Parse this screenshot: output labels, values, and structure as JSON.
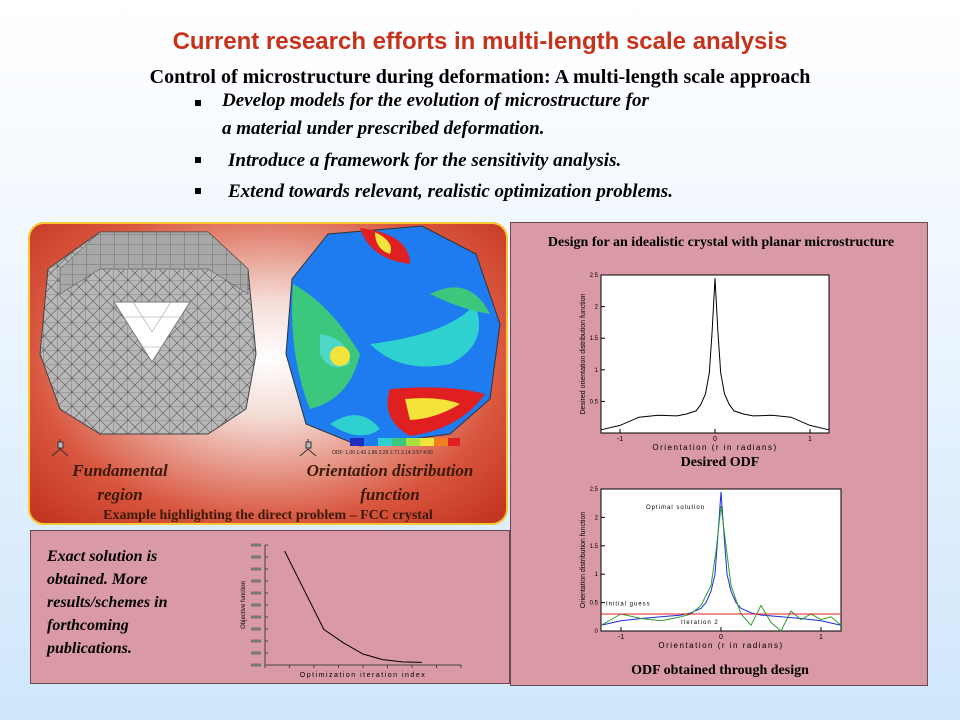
{
  "title": "Current research efforts in multi-length scale analysis",
  "subtitle": "Control of microstructure during deformation: A multi-length scale approach",
  "bullets": [
    {
      "line1": "Develop models for the evolution of microstructure for",
      "line2": "a material under prescribed deformation."
    },
    {
      "line1": "Introduce a framework for the sensitivity analysis."
    },
    {
      "line1": "Extend towards relevant, realistic optimization problems."
    }
  ],
  "left_panel": {
    "fundamental_label": [
      "Fundamental",
      "region"
    ],
    "odf_label": [
      "Orientation distribution",
      "function"
    ],
    "caption": "Example highlighting the direct problem – FCC crystal",
    "colorbar_ticks": "ODF: 1.00 1.43 1.86 2.29 2.71 3.14 3.57 4.00"
  },
  "bottom_left": {
    "text_lines": [
      "Exact solution is",
      "obtained. More",
      "results/schemes  in",
      "forthcoming",
      "publications."
    ]
  },
  "right_panel": {
    "top_title": "Design for an idealistic crystal with planar microstructure",
    "top_caption": "Desired ODF",
    "bottom_caption": "ODF obtained through design"
  },
  "colors": {
    "title": "#c8321a",
    "panel_pink": "#d99aa5",
    "panel_border": "#f6c832",
    "optimal": "#1a2ee0",
    "iteration": "#2e9e2e",
    "initial": "#e02020"
  },
  "chart_data": [
    {
      "type": "line",
      "title": "",
      "xlabel": "Orientation (r in radians)",
      "ylabel": "Desired orientation distribution function",
      "xlim": [
        -1.2,
        1.2
      ],
      "ylim": [
        0,
        2.5
      ],
      "x_ticks": [
        "-1",
        "0",
        "1"
      ],
      "y_ticks": [
        "0.5",
        "1",
        "1.5",
        "2",
        "2.5"
      ],
      "series": [
        {
          "x": [
            -1.2,
            -1.0,
            -0.8,
            -0.6,
            -0.4,
            -0.3,
            -0.2,
            -0.15,
            -0.1,
            -0.06,
            -0.03,
            0.0,
            0.03,
            0.06,
            0.1,
            0.15,
            0.2,
            0.3,
            0.4,
            0.6,
            0.8,
            1.0,
            1.2
          ],
          "values": [
            0.05,
            0.12,
            0.25,
            0.28,
            0.27,
            0.3,
            0.35,
            0.45,
            0.62,
            0.95,
            1.6,
            2.45,
            1.6,
            0.95,
            0.62,
            0.45,
            0.35,
            0.3,
            0.27,
            0.28,
            0.25,
            0.12,
            0.05
          ]
        }
      ]
    },
    {
      "type": "line",
      "title": "",
      "xlabel": "Orientation (r in radians)",
      "ylabel": "Orientation distribution function",
      "xlim": [
        -1.2,
        1.2
      ],
      "ylim": [
        0,
        2.5
      ],
      "x_ticks": [
        "-1",
        "0",
        "1"
      ],
      "y_ticks": [
        "0",
        "0.5",
        "1",
        "1.5",
        "2",
        "2.5"
      ],
      "annotations": [
        "Optimal solution",
        "Initial guess",
        "Iteration 2"
      ],
      "series": [
        {
          "name": "Optimal solution",
          "x": [
            -1.2,
            -1.0,
            -0.8,
            -0.6,
            -0.4,
            -0.3,
            -0.2,
            -0.15,
            -0.1,
            -0.06,
            -0.03,
            0.0,
            0.03,
            0.06,
            0.1,
            0.15,
            0.2,
            0.3,
            0.4,
            0.6,
            0.8,
            1.0,
            1.2
          ],
          "values": [
            0.1,
            0.18,
            0.22,
            0.25,
            0.28,
            0.32,
            0.4,
            0.5,
            0.7,
            1.0,
            1.7,
            2.45,
            1.7,
            1.0,
            0.7,
            0.5,
            0.4,
            0.32,
            0.28,
            0.25,
            0.22,
            0.18,
            0.1
          ]
        },
        {
          "name": "Iteration 2",
          "x": [
            -1.2,
            -1.0,
            -0.8,
            -0.6,
            -0.4,
            -0.3,
            -0.2,
            -0.1,
            -0.05,
            0.0,
            0.05,
            0.1,
            0.2,
            0.3,
            0.4,
            0.5,
            0.6,
            0.7,
            0.8,
            0.9,
            1.0,
            1.1,
            1.2
          ],
          "values": [
            0.1,
            0.3,
            0.22,
            0.18,
            0.25,
            0.3,
            0.45,
            0.8,
            1.4,
            2.2,
            1.5,
            0.8,
            0.3,
            0.1,
            0.45,
            0.15,
            0.0,
            0.35,
            0.2,
            0.3,
            0.2,
            0.25,
            0.1
          ]
        },
        {
          "name": "Initial guess",
          "x": [
            -1.2,
            1.2
          ],
          "values": [
            0.3,
            0.3
          ]
        }
      ]
    },
    {
      "type": "line",
      "title": "",
      "xlabel": "Optimization iteration index",
      "ylabel": "Objective function",
      "series": [
        {
          "x": [
            1,
            2,
            3,
            4,
            5,
            6,
            7,
            8
          ],
          "values": [
            1.0,
            0.65,
            0.3,
            0.18,
            0.08,
            0.03,
            0.01,
            0.005
          ]
        }
      ]
    }
  ]
}
